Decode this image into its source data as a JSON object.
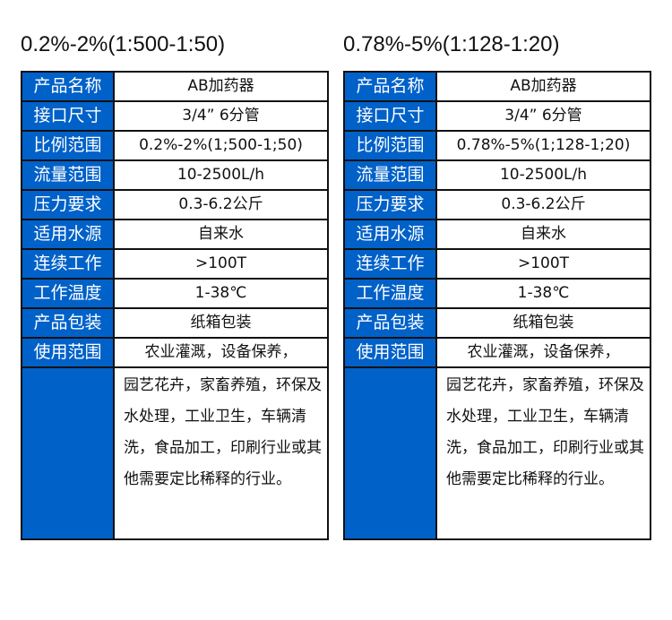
{
  "tables": [
    {
      "title": "0.2%-2%(1:500-1:50)",
      "rows": [
        {
          "label": "产品名称",
          "value": "AB加药器"
        },
        {
          "label": "接口尺寸",
          "value": "3/4”  6分管"
        },
        {
          "label": "比例范围",
          "value": "0.2%-2%(1;500-1;50)"
        },
        {
          "label": "流量范围",
          "value": "10-2500L/h"
        },
        {
          "label": "压力要求",
          "value": "0.3-6.2公斤"
        },
        {
          "label": "适用水源",
          "value": "自来水"
        },
        {
          "label": "连续工作",
          "value": ">100T"
        },
        {
          "label": "工作温度",
          "value": "1-38℃"
        },
        {
          "label": "产品包装",
          "value": "纸箱包装"
        },
        {
          "label": "使用范围",
          "value": "农业灌溉，设备保养，"
        }
      ],
      "usage_continued": "园艺花卉，家畜养殖，环保及水处理，工业卫生，车辆清洗，食品加工，印刷行业或其他需要定比稀释的行业。"
    },
    {
      "title": "0.78%-5%(1:128-1:20)",
      "rows": [
        {
          "label": "产品名称",
          "value": "AB加药器"
        },
        {
          "label": "接口尺寸",
          "value": "3/4”  6分管"
        },
        {
          "label": "比例范围",
          "value": "0.78%-5%(1;128-1;20)"
        },
        {
          "label": "流量范围",
          "value": "10-2500L/h"
        },
        {
          "label": "压力要求",
          "value": "0.3-6.2公斤"
        },
        {
          "label": "适用水源",
          "value": "自来水"
        },
        {
          "label": "连续工作",
          "value": ">100T"
        },
        {
          "label": "工作温度",
          "value": "1-38℃"
        },
        {
          "label": "产品包装",
          "value": "纸箱包装"
        },
        {
          "label": "使用范围",
          "value": "农业灌溉，设备保养，"
        }
      ],
      "usage_continued": "园艺花卉，家畜养殖，环保及水处理，工业卫生，车辆清洗，食品加工，印刷行业或其他需要定比稀释的行业。"
    }
  ],
  "colors": {
    "label_bg": "#0061c9",
    "label_text": "#ffffff",
    "border": "#111111"
  }
}
